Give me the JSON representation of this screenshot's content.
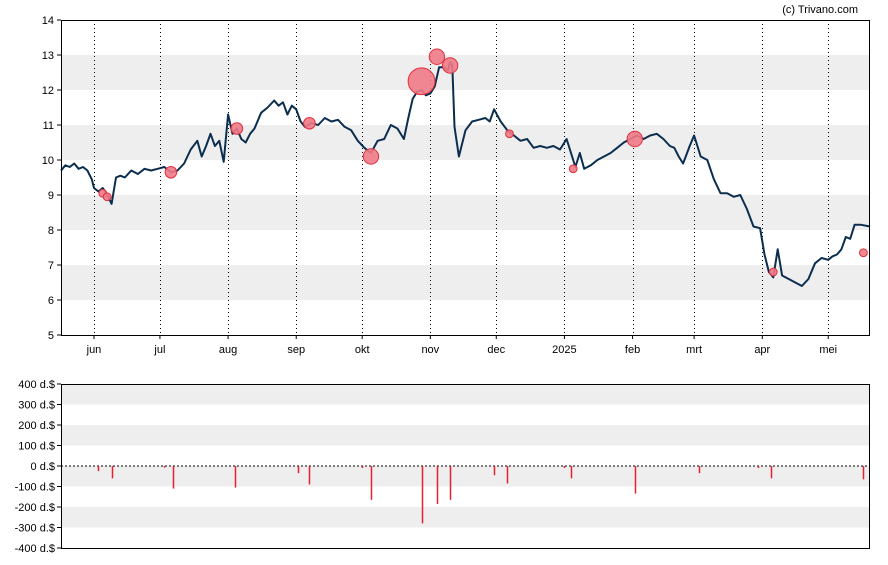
{
  "credit": "(c) Trivano.com",
  "colors": {
    "line": "#0b2e4f",
    "band": "#eeeeee",
    "bubble_fill": "#f07a86",
    "bubble_stroke": "#e0303f",
    "bar": "#e8202f",
    "axis": "#000000"
  },
  "chart_data": [
    {
      "type": "line",
      "title": "",
      "ylim": [
        5,
        14
      ],
      "y_ticks": [
        "5",
        "6",
        "7",
        "8",
        "9",
        "10",
        "11",
        "12",
        "13",
        "14"
      ],
      "x_range": [
        "2024-05-17",
        "2025-05-20"
      ],
      "x_ticks": [
        {
          "label": "jun",
          "date": "2024-06-01"
        },
        {
          "label": "jul",
          "date": "2024-07-01"
        },
        {
          "label": "aug",
          "date": "2024-08-01"
        },
        {
          "label": "sep",
          "date": "2024-09-01"
        },
        {
          "label": "okt",
          "date": "2024-10-01"
        },
        {
          "label": "nov",
          "date": "2024-11-01"
        },
        {
          "label": "dec",
          "date": "2024-12-01"
        },
        {
          "label": "2025",
          "date": "2025-01-01"
        },
        {
          "label": "feb",
          "date": "2025-02-01"
        },
        {
          "label": "mrt",
          "date": "2025-03-01"
        },
        {
          "label": "apr",
          "date": "2025-04-01"
        },
        {
          "label": "mei",
          "date": "2025-05-01"
        }
      ],
      "grid": "dotted vertical lines at month starts, alternating horizontal bands",
      "series": [
        {
          "points": [
            [
              "2024-05-17",
              9.7
            ],
            [
              "2024-05-19",
              9.85
            ],
            [
              "2024-05-21",
              9.8
            ],
            [
              "2024-05-23",
              9.9
            ],
            [
              "2024-05-25",
              9.75
            ],
            [
              "2024-05-27",
              9.8
            ],
            [
              "2024-05-29",
              9.7
            ],
            [
              "2024-05-31",
              9.45
            ],
            [
              "2024-06-01",
              9.2
            ],
            [
              "2024-06-03",
              9.1
            ],
            [
              "2024-06-05",
              9.2
            ],
            [
              "2024-06-07",
              9.0
            ],
            [
              "2024-06-09",
              8.75
            ],
            [
              "2024-06-11",
              9.5
            ],
            [
              "2024-06-13",
              9.55
            ],
            [
              "2024-06-15",
              9.5
            ],
            [
              "2024-06-18",
              9.7
            ],
            [
              "2024-06-21",
              9.6
            ],
            [
              "2024-06-24",
              9.75
            ],
            [
              "2024-06-27",
              9.7
            ],
            [
              "2024-06-30",
              9.75
            ],
            [
              "2024-07-03",
              9.8
            ],
            [
              "2024-07-06",
              9.65
            ],
            [
              "2024-07-09",
              9.7
            ],
            [
              "2024-07-12",
              9.9
            ],
            [
              "2024-07-15",
              10.3
            ],
            [
              "2024-07-18",
              10.55
            ],
            [
              "2024-07-20",
              10.1
            ],
            [
              "2024-07-22",
              10.4
            ],
            [
              "2024-07-24",
              10.75
            ],
            [
              "2024-07-26",
              10.4
            ],
            [
              "2024-07-28",
              10.55
            ],
            [
              "2024-07-30",
              9.95
            ],
            [
              "2024-08-01",
              11.3
            ],
            [
              "2024-08-03",
              10.75
            ],
            [
              "2024-08-05",
              10.9
            ],
            [
              "2024-08-07",
              10.6
            ],
            [
              "2024-08-09",
              10.5
            ],
            [
              "2024-08-11",
              10.75
            ],
            [
              "2024-08-13",
              10.9
            ],
            [
              "2024-08-16",
              11.35
            ],
            [
              "2024-08-19",
              11.5
            ],
            [
              "2024-08-22",
              11.7
            ],
            [
              "2024-08-24",
              11.55
            ],
            [
              "2024-08-26",
              11.65
            ],
            [
              "2024-08-28",
              11.3
            ],
            [
              "2024-08-30",
              11.55
            ],
            [
              "2024-09-01",
              11.45
            ],
            [
              "2024-09-03",
              11.1
            ],
            [
              "2024-09-05",
              10.95
            ],
            [
              "2024-09-08",
              11.05
            ],
            [
              "2024-09-11",
              11.0
            ],
            [
              "2024-09-14",
              11.2
            ],
            [
              "2024-09-17",
              11.1
            ],
            [
              "2024-09-20",
              11.15
            ],
            [
              "2024-09-23",
              10.95
            ],
            [
              "2024-09-26",
              10.85
            ],
            [
              "2024-09-29",
              10.55
            ],
            [
              "2024-10-02",
              10.35
            ],
            [
              "2024-10-05",
              10.2
            ],
            [
              "2024-10-08",
              10.55
            ],
            [
              "2024-10-11",
              10.6
            ],
            [
              "2024-10-14",
              11.0
            ],
            [
              "2024-10-17",
              10.9
            ],
            [
              "2024-10-20",
              10.6
            ],
            [
              "2024-10-22",
              11.2
            ],
            [
              "2024-10-24",
              11.75
            ],
            [
              "2024-10-26",
              11.95
            ],
            [
              "2024-10-28",
              12.0
            ],
            [
              "2024-10-30",
              11.85
            ],
            [
              "2024-11-01",
              11.9
            ],
            [
              "2024-11-03",
              12.1
            ],
            [
              "2024-11-05",
              12.65
            ],
            [
              "2024-11-07",
              12.65
            ],
            [
              "2024-11-09",
              12.55
            ],
            [
              "2024-11-10",
              12.8
            ],
            [
              "2024-11-11",
              12.7
            ],
            [
              "2024-11-12",
              10.95
            ],
            [
              "2024-11-14",
              10.1
            ],
            [
              "2024-11-17",
              10.85
            ],
            [
              "2024-11-20",
              11.1
            ],
            [
              "2024-11-23",
              11.15
            ],
            [
              "2024-11-26",
              11.2
            ],
            [
              "2024-11-28",
              11.1
            ],
            [
              "2024-11-30",
              11.45
            ],
            [
              "2024-12-03",
              11.1
            ],
            [
              "2024-12-06",
              10.85
            ],
            [
              "2024-12-09",
              10.7
            ],
            [
              "2024-12-12",
              10.55
            ],
            [
              "2024-12-15",
              10.6
            ],
            [
              "2024-12-18",
              10.35
            ],
            [
              "2024-12-21",
              10.4
            ],
            [
              "2024-12-24",
              10.35
            ],
            [
              "2024-12-27",
              10.4
            ],
            [
              "2024-12-30",
              10.3
            ],
            [
              "2025-01-02",
              10.6
            ],
            [
              "2025-01-04",
              10.2
            ],
            [
              "2025-01-06",
              9.8
            ],
            [
              "2025-01-08",
              10.2
            ],
            [
              "2025-01-10",
              9.75
            ],
            [
              "2025-01-13",
              9.85
            ],
            [
              "2025-01-16",
              10.0
            ],
            [
              "2025-01-19",
              10.1
            ],
            [
              "2025-01-22",
              10.2
            ],
            [
              "2025-01-25",
              10.35
            ],
            [
              "2025-01-28",
              10.5
            ],
            [
              "2025-01-31",
              10.6
            ],
            [
              "2025-02-03",
              10.7
            ],
            [
              "2025-02-06",
              10.6
            ],
            [
              "2025-02-09",
              10.7
            ],
            [
              "2025-02-12",
              10.75
            ],
            [
              "2025-02-15",
              10.6
            ],
            [
              "2025-02-18",
              10.4
            ],
            [
              "2025-02-20",
              10.35
            ],
            [
              "2025-02-22",
              10.1
            ],
            [
              "2025-02-24",
              9.9
            ],
            [
              "2025-02-27",
              10.4
            ],
            [
              "2025-03-01",
              10.7
            ],
            [
              "2025-03-04",
              10.1
            ],
            [
              "2025-03-07",
              10.0
            ],
            [
              "2025-03-10",
              9.45
            ],
            [
              "2025-03-13",
              9.05
            ],
            [
              "2025-03-16",
              9.05
            ],
            [
              "2025-03-19",
              8.95
            ],
            [
              "2025-03-22",
              9.0
            ],
            [
              "2025-03-25",
              8.6
            ],
            [
              "2025-03-28",
              8.1
            ],
            [
              "2025-03-31",
              8.05
            ],
            [
              "2025-04-02",
              7.3
            ],
            [
              "2025-04-04",
              6.8
            ],
            [
              "2025-04-06",
              6.65
            ],
            [
              "2025-04-08",
              7.45
            ],
            [
              "2025-04-10",
              6.7
            ],
            [
              "2025-04-13",
              6.6
            ],
            [
              "2025-04-16",
              6.5
            ],
            [
              "2025-04-19",
              6.4
            ],
            [
              "2025-04-22",
              6.6
            ],
            [
              "2025-04-25",
              7.05
            ],
            [
              "2025-04-28",
              7.2
            ],
            [
              "2025-05-01",
              7.15
            ],
            [
              "2025-05-03",
              7.25
            ],
            [
              "2025-05-05",
              7.3
            ],
            [
              "2025-05-07",
              7.45
            ],
            [
              "2025-05-09",
              7.8
            ],
            [
              "2025-05-11",
              7.75
            ],
            [
              "2025-05-13",
              8.15
            ],
            [
              "2025-05-16",
              8.15
            ],
            [
              "2025-05-20",
              8.1
            ]
          ]
        }
      ],
      "bubbles": [
        {
          "date": "2024-06-05",
          "value": 9.05,
          "size": 1
        },
        {
          "date": "2024-06-07",
          "value": 8.95,
          "size": 1
        },
        {
          "date": "2024-07-06",
          "value": 9.65,
          "size": 2
        },
        {
          "date": "2024-08-05",
          "value": 10.9,
          "size": 2
        },
        {
          "date": "2024-09-07",
          "value": 11.05,
          "size": 2
        },
        {
          "date": "2024-10-05",
          "value": 10.1,
          "size": 3
        },
        {
          "date": "2024-10-28",
          "value": 12.25,
          "size": 6
        },
        {
          "date": "2024-11-04",
          "value": 12.95,
          "size": 3
        },
        {
          "date": "2024-11-10",
          "value": 12.7,
          "size": 3
        },
        {
          "date": "2024-12-07",
          "value": 10.75,
          "size": 1
        },
        {
          "date": "2025-01-05",
          "value": 9.75,
          "size": 1
        },
        {
          "date": "2025-02-02",
          "value": 10.6,
          "size": 3
        },
        {
          "date": "2025-04-06",
          "value": 6.8,
          "size": 1
        },
        {
          "date": "2025-05-17",
          "value": 7.35,
          "size": 1
        }
      ]
    },
    {
      "type": "bar",
      "title": "",
      "ylim": [
        -400,
        400
      ],
      "y_ticks": [
        "-400 d.$",
        "-300 d.$",
        "-200 d.$",
        "-100 d.$",
        "0 d.$",
        "100 d.$",
        "200 d.$",
        "300 d.$",
        "400 d.$"
      ],
      "grid": "alternating horizontal bands",
      "bars": [
        {
          "date": "2024-06-03",
          "value": -25
        },
        {
          "date": "2024-06-09",
          "value": -60
        },
        {
          "date": "2024-07-03",
          "value": -8
        },
        {
          "date": "2024-07-07",
          "value": -110
        },
        {
          "date": "2024-08-04",
          "value": -105
        },
        {
          "date": "2024-09-02",
          "value": -35
        },
        {
          "date": "2024-09-07",
          "value": -90
        },
        {
          "date": "2024-10-01",
          "value": -10
        },
        {
          "date": "2024-10-05",
          "value": -165
        },
        {
          "date": "2024-10-28",
          "value": -280
        },
        {
          "date": "2024-11-04",
          "value": -185
        },
        {
          "date": "2024-11-10",
          "value": -165
        },
        {
          "date": "2024-11-30",
          "value": -45
        },
        {
          "date": "2024-12-06",
          "value": -85
        },
        {
          "date": "2025-01-01",
          "value": -10
        },
        {
          "date": "2025-01-04",
          "value": -60
        },
        {
          "date": "2025-02-02",
          "value": -135
        },
        {
          "date": "2025-03-03",
          "value": -35
        },
        {
          "date": "2025-03-30",
          "value": -10
        },
        {
          "date": "2025-04-05",
          "value": -60
        },
        {
          "date": "2025-05-17",
          "value": -65
        }
      ]
    }
  ]
}
